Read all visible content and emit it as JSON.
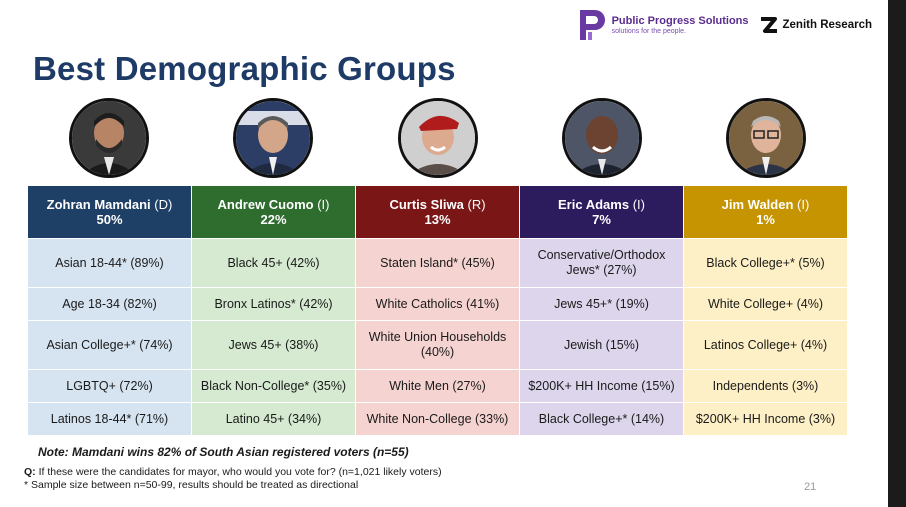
{
  "logos": {
    "pps_name": "Public Progress Solutions",
    "pps_tagline": "solutions for the people.",
    "zenith_name": "Zenith Research"
  },
  "title": "Best Demographic Groups",
  "colors": {
    "title": "#1e3a66",
    "mamdani_header": "#1e3f66",
    "mamdani_cell": "#d6e4f2",
    "cuomo_header": "#2e6d2e",
    "cuomo_cell": "#d5ead1",
    "sliwa_header": "#7a1616",
    "sliwa_cell": "#f5d3d1",
    "adams_header": "#2c1c5e",
    "adams_cell": "#dcd5ec",
    "walden_header": "#c59400",
    "walden_cell": "#fdf0c6"
  },
  "candidates": [
    {
      "name": "Zohran Mamdani",
      "party": "(D)",
      "pct": "50%",
      "photo_icon": "mamdani-portrait"
    },
    {
      "name": "Andrew Cuomo",
      "party": "(I)",
      "pct": "22%",
      "photo_icon": "cuomo-portrait"
    },
    {
      "name": "Curtis Sliwa",
      "party": "(R)",
      "pct": "13%",
      "photo_icon": "sliwa-portrait"
    },
    {
      "name": "Eric Adams",
      "party": "(I)",
      "pct": "7%",
      "photo_icon": "adams-portrait"
    },
    {
      "name": "Jim Walden",
      "party": "(I)",
      "pct": "1%",
      "photo_icon": "walden-portrait"
    }
  ],
  "rows": [
    [
      "Asian 18-44* (89%)",
      "Black 45+ (42%)",
      "Staten Island* (45%)",
      "Conservative/Orthodox Jews* (27%)",
      "Black College+* (5%)"
    ],
    [
      "Age 18-34 (82%)",
      "Bronx Latinos* (42%)",
      "White Catholics (41%)",
      "Jews 45+* (19%)",
      "White College+ (4%)"
    ],
    [
      "Asian College+* (74%)",
      "Jews 45+ (38%)",
      "White Union Households (40%)",
      "Jewish (15%)",
      "Latinos College+ (4%)"
    ],
    [
      "LGBTQ+ (72%)",
      "Black Non-College* (35%)",
      "White Men (27%)",
      "$200K+ HH Income (15%)",
      "Independents (3%)"
    ],
    [
      "Latinos 18-44* (71%)",
      "Latino 45+ (34%)",
      "White Non-College (33%)",
      "Black College+* (14%)",
      "$200K+ HH Income (3%)"
    ]
  ],
  "note": "Note: Mamdani wins 82% of South Asian registered voters (n=55)",
  "footer": {
    "q_label": "Q:",
    "question": " If these were the candidates for mayor, who would you vote for? (n=1,021 likely voters)",
    "sample_note": "* Sample size between n=50-99, results should be treated as directional"
  },
  "page_number": "21"
}
